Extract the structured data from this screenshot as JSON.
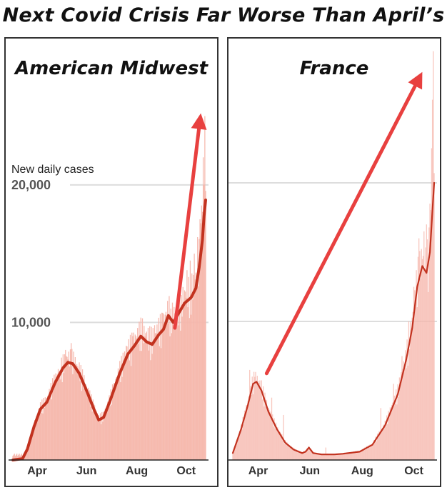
{
  "headline": "Next Covid Crisis Far Worse Than April’s",
  "colors": {
    "bar": "#f6b6ab",
    "line": "#c2321f",
    "arrow": "#e8403f",
    "grid": "#dddddd"
  },
  "chart_data": [
    {
      "type": "bar",
      "title": "American Midwest",
      "ylabel": "New daily cases",
      "ylim": [
        0,
        27000
      ],
      "yticks": [
        {
          "value": 10000,
          "label": "10,000"
        },
        {
          "value": 20000,
          "label": "20,000"
        }
      ],
      "xticks": [
        {
          "x": 30,
          "label": "Apr"
        },
        {
          "x": 91,
          "label": "Jun"
        },
        {
          "x": 153,
          "label": "Aug"
        },
        {
          "x": 214,
          "label": "Oct"
        }
      ],
      "xlim": [
        0,
        238
      ],
      "avg_points": [
        [
          0,
          0
        ],
        [
          12,
          100
        ],
        [
          18,
          800
        ],
        [
          26,
          2400
        ],
        [
          34,
          3700
        ],
        [
          42,
          4200
        ],
        [
          52,
          5600
        ],
        [
          62,
          6700
        ],
        [
          68,
          7100
        ],
        [
          74,
          7000
        ],
        [
          82,
          6300
        ],
        [
          92,
          4900
        ],
        [
          100,
          3700
        ],
        [
          106,
          2900
        ],
        [
          112,
          3100
        ],
        [
          120,
          4300
        ],
        [
          132,
          6300
        ],
        [
          142,
          7700
        ],
        [
          150,
          8300
        ],
        [
          158,
          9000
        ],
        [
          165,
          8600
        ],
        [
          172,
          8400
        ],
        [
          180,
          9100
        ],
        [
          186,
          9500
        ],
        [
          192,
          10500
        ],
        [
          198,
          10000
        ],
        [
          204,
          10600
        ],
        [
          212,
          11400
        ],
        [
          220,
          11800
        ],
        [
          226,
          12500
        ],
        [
          230,
          14000
        ],
        [
          234,
          16000
        ],
        [
          236,
          17700
        ],
        [
          238,
          18900
        ]
      ],
      "spike_values": [
        [
          50,
          5000
        ],
        [
          58,
          6500
        ],
        [
          65,
          8000
        ],
        [
          72,
          8500
        ],
        [
          80,
          6800
        ],
        [
          90,
          5500
        ],
        [
          100,
          4100
        ],
        [
          125,
          5600
        ],
        [
          140,
          8300
        ],
        [
          148,
          9000
        ],
        [
          160,
          10300
        ],
        [
          175,
          9800
        ],
        [
          185,
          10700
        ],
        [
          195,
          11000
        ],
        [
          203,
          11800
        ],
        [
          208,
          12000
        ],
        [
          215,
          13800
        ],
        [
          219,
          14500
        ],
        [
          224,
          15000
        ],
        [
          228,
          16200
        ],
        [
          231,
          17500
        ],
        [
          233,
          18500
        ],
        [
          235,
          22000
        ],
        [
          236,
          20000
        ],
        [
          237,
          25000
        ]
      ],
      "arrow": {
        "from": [
          200,
          9600
        ],
        "to": [
          232,
          25200
        ]
      }
    },
    {
      "type": "bar",
      "title": "France",
      "ylim": [
        0,
        60000
      ],
      "xticks": [
        {
          "x": 30,
          "label": "Apr"
        },
        {
          "x": 91,
          "label": "Jun"
        },
        {
          "x": 153,
          "label": "Aug"
        },
        {
          "x": 214,
          "label": "Oct"
        }
      ],
      "xlim": [
        0,
        238
      ],
      "avg_points": [
        [
          0,
          1000
        ],
        [
          10,
          4500
        ],
        [
          18,
          8000
        ],
        [
          24,
          11000
        ],
        [
          28,
          11300
        ],
        [
          34,
          10000
        ],
        [
          42,
          7000
        ],
        [
          52,
          4500
        ],
        [
          62,
          2500
        ],
        [
          72,
          1500
        ],
        [
          82,
          1000
        ],
        [
          86,
          1200
        ],
        [
          90,
          1800
        ],
        [
          95,
          1000
        ],
        [
          105,
          800
        ],
        [
          120,
          800
        ],
        [
          130,
          900
        ],
        [
          150,
          1200
        ],
        [
          165,
          2200
        ],
        [
          180,
          5000
        ],
        [
          195,
          9500
        ],
        [
          205,
          14500
        ],
        [
          212,
          19000
        ],
        [
          218,
          25000
        ],
        [
          224,
          28000
        ],
        [
          229,
          27000
        ],
        [
          233,
          30000
        ],
        [
          236,
          36000
        ],
        [
          238,
          40000
        ]
      ],
      "spike_values": [
        [
          20,
          13000
        ],
        [
          26,
          12000
        ],
        [
          34,
          11500
        ],
        [
          46,
          9000
        ],
        [
          60,
          6500
        ],
        [
          110,
          1800
        ],
        [
          175,
          7500
        ],
        [
          190,
          11000
        ],
        [
          200,
          15000
        ],
        [
          208,
          20000
        ],
        [
          214,
          25000
        ],
        [
          220,
          32000
        ],
        [
          226,
          33000
        ],
        [
          229,
          34000
        ],
        [
          233,
          37000
        ],
        [
          235,
          45000
        ],
        [
          236,
          52000
        ],
        [
          237,
          59000
        ]
      ],
      "arrow": {
        "from": [
          40,
          12500
        ],
        "to": [
          224,
          56000
        ]
      }
    }
  ]
}
